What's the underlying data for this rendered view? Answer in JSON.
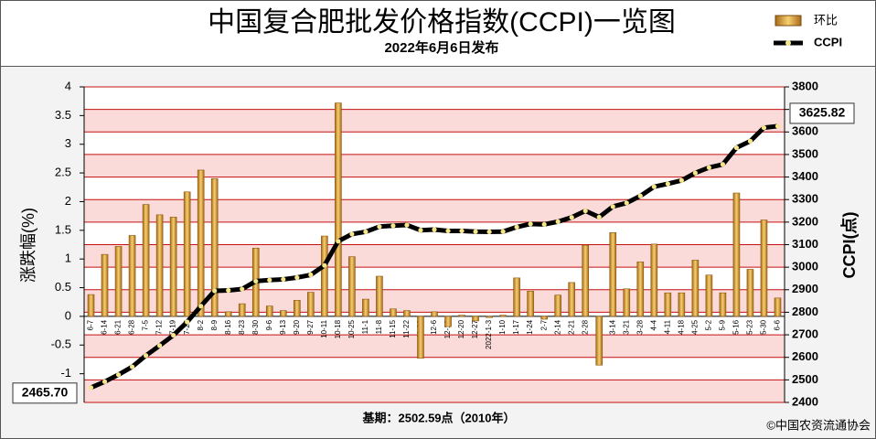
{
  "chart_data": {
    "type": "bar-line",
    "title": "中国复合肥批发价格指数(CCPI)一览图",
    "subtitle": "2022年6月6日发布",
    "footnote": "基期：2502.59点（2010年）",
    "source": "©中国农资流通协会",
    "ylabel": "涨跌幅(%)",
    "y2label": "CCPI(点)",
    "categories": [
      "6-7",
      "6-14",
      "6-21",
      "6-28",
      "7-5",
      "7-12",
      "7-19",
      "7-26",
      "8-2",
      "8-9",
      "8-16",
      "8-23",
      "8-30",
      "9-6",
      "9-13",
      "9-20",
      "9-27",
      "10-11",
      "10-18",
      "10-25",
      "11-1",
      "11-8",
      "11-15",
      "11-22",
      "11-29",
      "12-6",
      "12-13",
      "12-20",
      "12-27",
      "2022-1-3",
      "1-10",
      "1-17",
      "1-24",
      "2-7",
      "2-14",
      "2-21",
      "2-28",
      "3-7",
      "3-14",
      "3-21",
      "3-28",
      "4-4",
      "4-11",
      "4-18",
      "4-25",
      "5-2",
      "5-9",
      "5-16",
      "5-23",
      "5-30",
      "6-6"
    ],
    "series": [
      {
        "name": "环比",
        "type": "bar",
        "color": "#e0a040",
        "values": [
          0.38,
          1.08,
          1.22,
          1.41,
          1.95,
          1.77,
          1.73,
          2.17,
          2.55,
          2.4,
          0.08,
          0.22,
          1.19,
          0.18,
          0.1,
          0.28,
          0.42,
          1.4,
          3.72,
          1.04,
          0.3,
          0.7,
          0.13,
          0.1,
          -0.73,
          0.08,
          -0.18,
          0.02,
          -0.08,
          -0.02,
          0.02,
          0.67,
          0.44,
          -0.05,
          0.37,
          0.59,
          1.24,
          -0.85,
          1.46,
          0.48,
          0.95,
          1.26,
          0.41,
          0.41,
          0.98,
          0.72,
          0.41,
          2.15,
          0.82,
          1.68,
          0.32
        ]
      },
      {
        "name": "CCPI",
        "type": "line",
        "axis": "y2",
        "color": "#000000",
        "values": [
          2465.7,
          2492,
          2523,
          2558,
          2608,
          2652,
          2698,
          2757,
          2827,
          2895,
          2897,
          2903,
          2938,
          2943,
          2946,
          2954,
          2966,
          3008,
          3115,
          3147,
          3157,
          3180,
          3184,
          3187,
          3164,
          3167,
          3161,
          3161,
          3158,
          3157,
          3158,
          3178,
          3192,
          3190,
          3202,
          3221,
          3250,
          3222,
          3269,
          3285,
          3316,
          3357,
          3370,
          3385,
          3418,
          3442,
          3456,
          3530,
          3559,
          3619,
          3625.82
        ],
        "value_labels": [
          "2465.70",
          null,
          null,
          null,
          null,
          null,
          null,
          null,
          null,
          null,
          null,
          null,
          null,
          null,
          null,
          null,
          null,
          null,
          null,
          null,
          null,
          null,
          null,
          null,
          null,
          null,
          null,
          null,
          null,
          null,
          null,
          null,
          null,
          null,
          null,
          null,
          null,
          null,
          null,
          null,
          null,
          null,
          null,
          null,
          null,
          null,
          null,
          null,
          null,
          null,
          "3625.82"
        ]
      }
    ],
    "ylim": [
      -1.5,
      4
    ],
    "yticks": [
      -1,
      -0.5,
      0,
      0.5,
      1,
      1.5,
      2,
      2.5,
      3,
      3.5,
      4
    ],
    "y2lim": [
      2400,
      3800
    ],
    "y2ticks": [
      2400,
      2500,
      2600,
      2700,
      2800,
      2900,
      3000,
      3100,
      3200,
      3300,
      3400,
      3500,
      3600,
      3700,
      3800
    ],
    "grid": true
  }
}
